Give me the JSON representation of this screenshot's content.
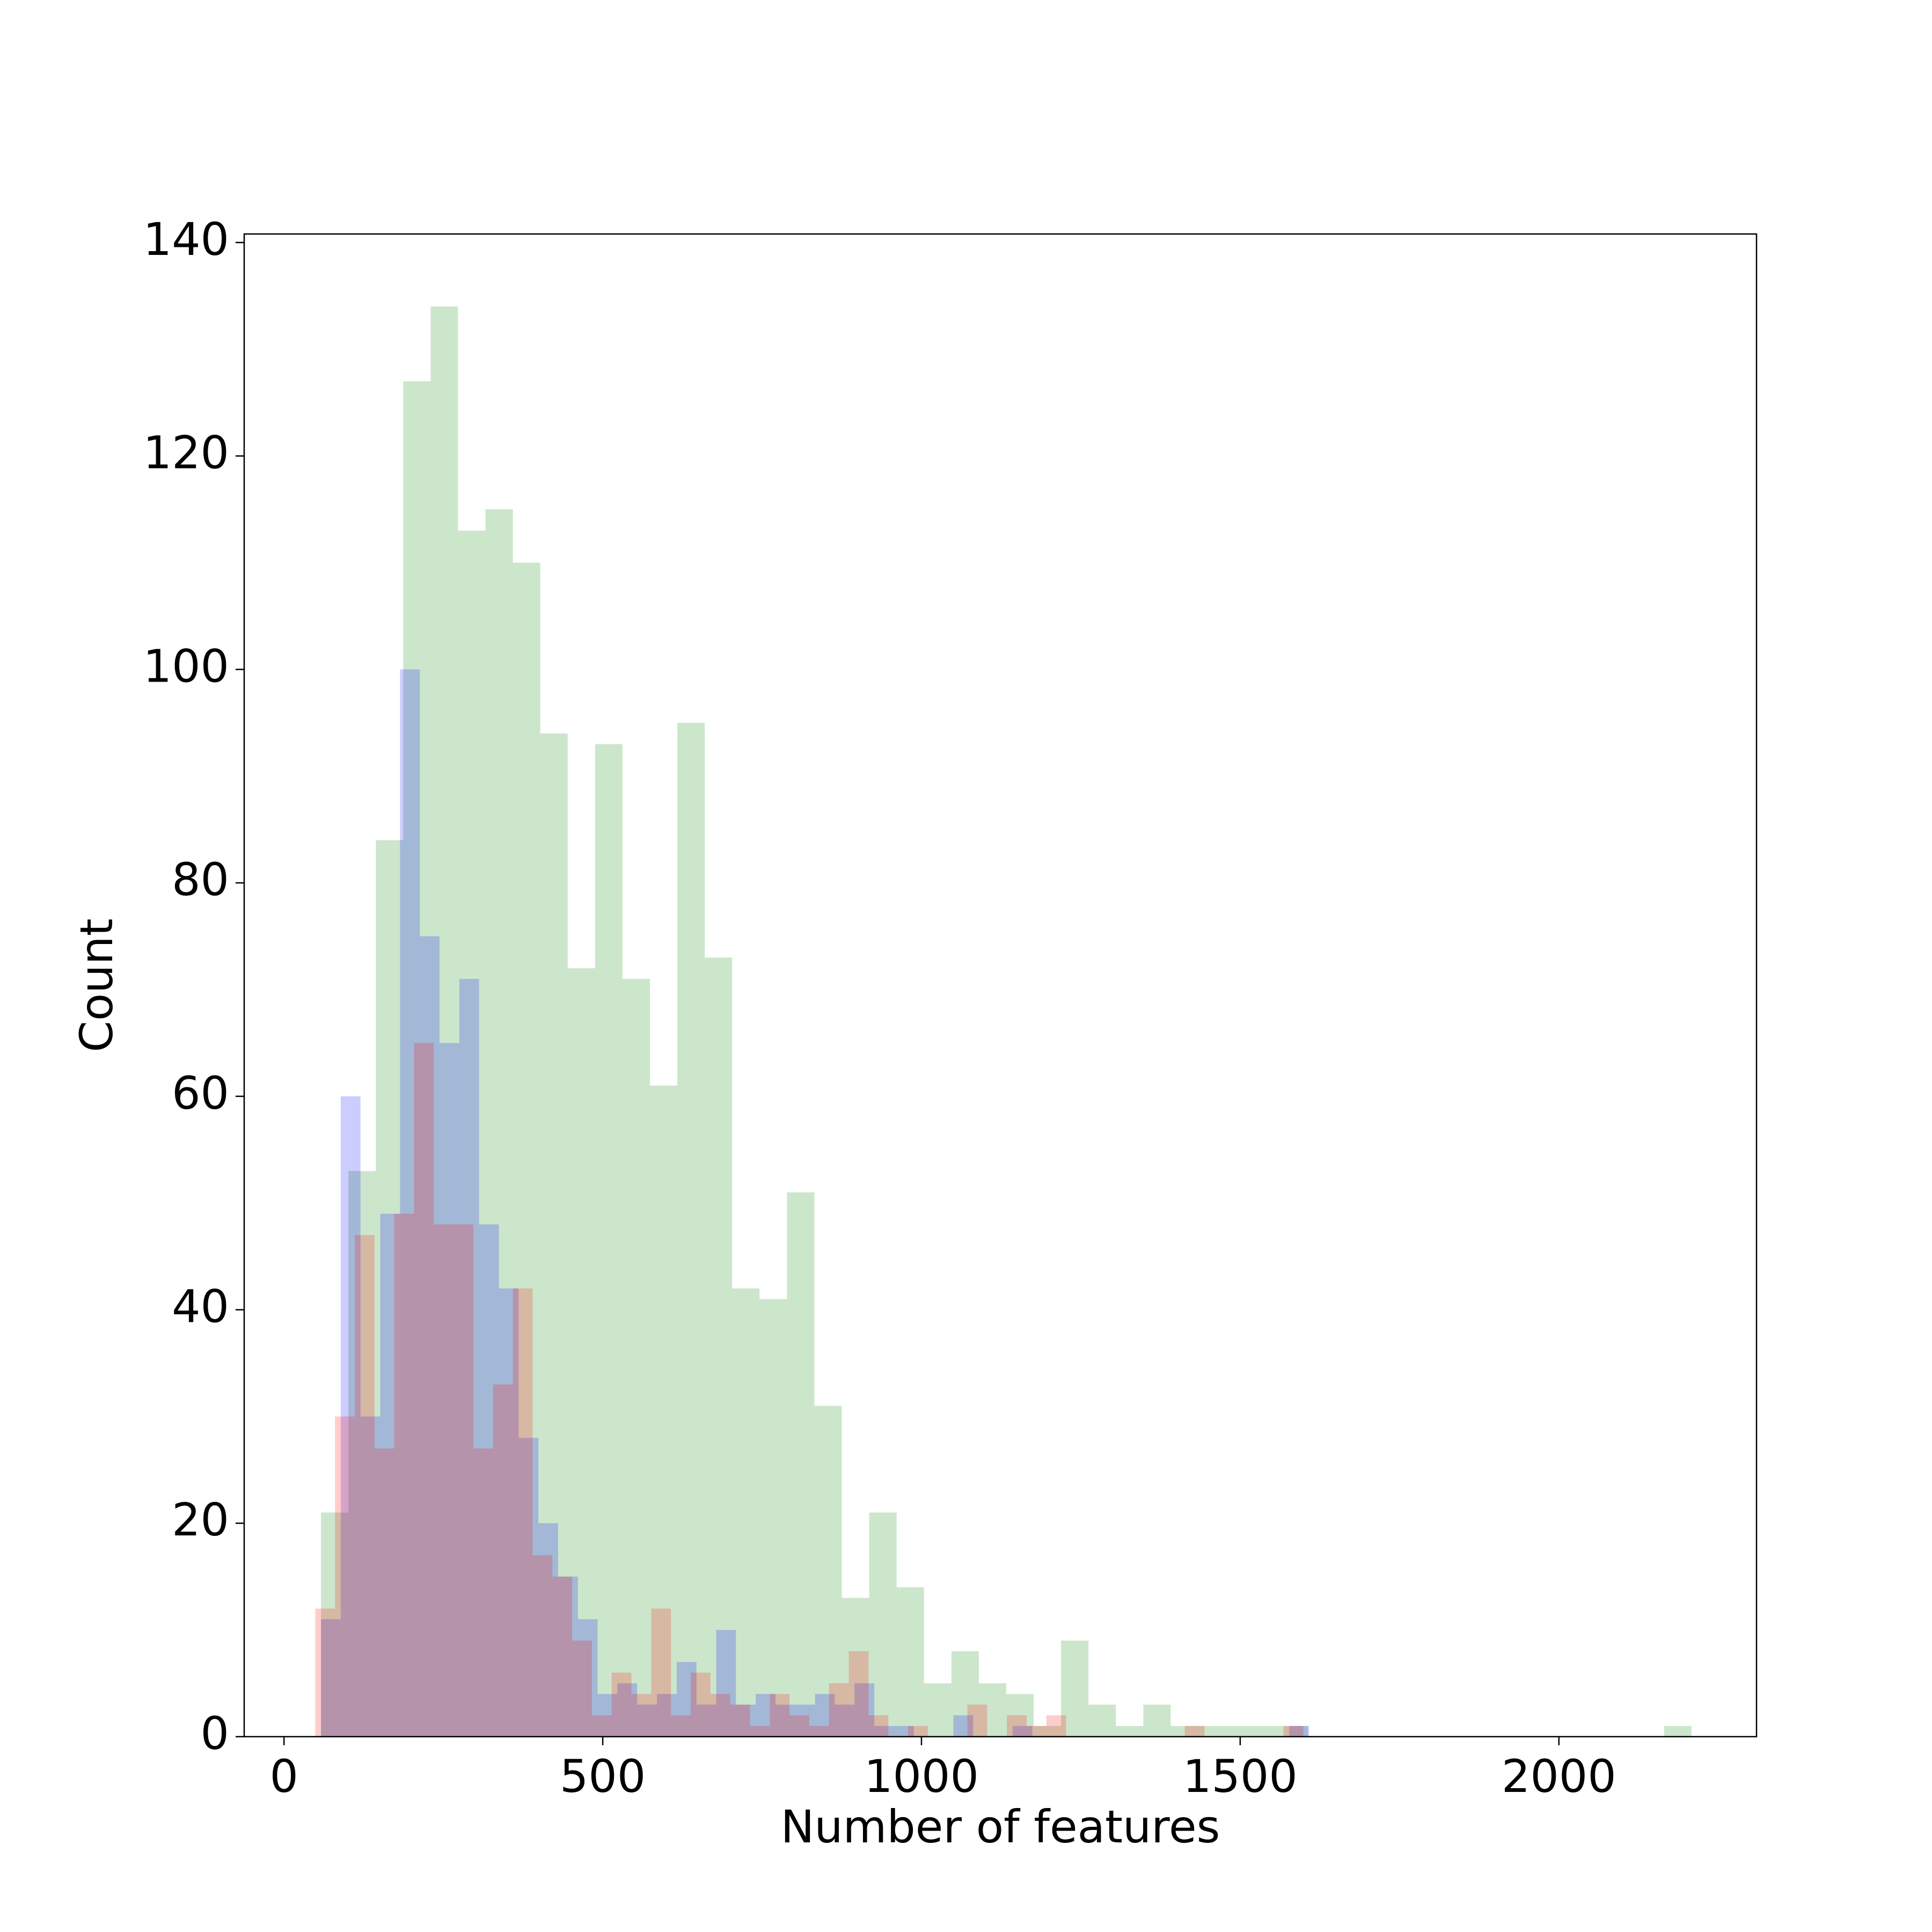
{
  "chart_data": {
    "type": "histogram",
    "x_label": "Number of features",
    "y_label": "Count",
    "xlim": [
      -62.5,
      2310
    ],
    "ylim": [
      0,
      140.8
    ],
    "xticks": [
      0,
      500,
      1000,
      1500,
      2000
    ],
    "yticks": [
      0,
      20,
      40,
      60,
      80,
      100,
      120,
      140
    ],
    "alpha": 0.2,
    "series": [
      {
        "color": "green",
        "bins": [
          58,
          101,
          144,
          187,
          230,
          273,
          316,
          359,
          402,
          445,
          488,
          531,
          574,
          617,
          660,
          703,
          746,
          789,
          832,
          875,
          918,
          961,
          1004,
          1047,
          1090,
          1133,
          1176,
          1219,
          1262,
          1305,
          1348,
          1391,
          1434,
          1477,
          1520,
          1563,
          1606,
          1649,
          1692,
          1735,
          1778,
          1821,
          1864,
          1907,
          1950,
          1993,
          2036,
          2079,
          2122,
          2165,
          2208
        ],
        "values": [
          21,
          53,
          84,
          127,
          134,
          113,
          115,
          110,
          94,
          72,
          93,
          71,
          61,
          95,
          73,
          42,
          41,
          51,
          31,
          13,
          21,
          14,
          5,
          8,
          5,
          4,
          1,
          9,
          3,
          1,
          3,
          1,
          1,
          1,
          1,
          1,
          0,
          0,
          0,
          0,
          0,
          0,
          0,
          0,
          0,
          0,
          0,
          0,
          0,
          1
        ]
      },
      {
        "color": "blue",
        "bins": [
          58,
          89,
          120,
          151,
          182,
          213,
          244,
          275,
          306,
          337,
          368,
          399,
          430,
          461,
          492,
          523,
          554,
          585,
          616,
          647,
          678,
          709,
          740,
          771,
          802,
          833,
          864,
          895,
          926,
          957,
          988,
          1019,
          1050,
          1081,
          1112,
          1143,
          1174,
          1205,
          1236,
          1267,
          1298,
          1329,
          1360,
          1391,
          1422,
          1453,
          1484,
          1515,
          1546,
          1577,
          1608
        ],
        "values": [
          11,
          60,
          30,
          49,
          100,
          75,
          65,
          71,
          48,
          42,
          28,
          20,
          15,
          11,
          4,
          5,
          3,
          4,
          7,
          3,
          10,
          3,
          4,
          3,
          3,
          4,
          3,
          5,
          1,
          1,
          0,
          0,
          2,
          0,
          0,
          1,
          0,
          0,
          0,
          0,
          0,
          0,
          0,
          0,
          0,
          0,
          0,
          0,
          0,
          1
        ]
      },
      {
        "color": "red",
        "bins": [
          49,
          80,
          111,
          142,
          173,
          204,
          235,
          266,
          297,
          328,
          359,
          390,
          421,
          452,
          483,
          514,
          545,
          576,
          607,
          638,
          669,
          700,
          731,
          762,
          793,
          824,
          855,
          886,
          917,
          948,
          979,
          1010,
          1041,
          1072,
          1103,
          1134,
          1165,
          1196,
          1227,
          1258,
          1289,
          1320,
          1351,
          1382,
          1413,
          1444,
          1475,
          1506,
          1537,
          1568,
          1599
        ],
        "values": [
          12,
          30,
          47,
          27,
          49,
          65,
          48,
          48,
          27,
          33,
          42,
          17,
          15,
          9,
          2,
          6,
          4,
          12,
          2,
          6,
          4,
          3,
          1,
          4,
          2,
          1,
          5,
          8,
          2,
          0,
          1,
          0,
          0,
          3,
          0,
          2,
          1,
          2,
          0,
          0,
          0,
          0,
          0,
          0,
          1,
          0,
          0,
          0,
          0,
          1
        ]
      }
    ]
  }
}
